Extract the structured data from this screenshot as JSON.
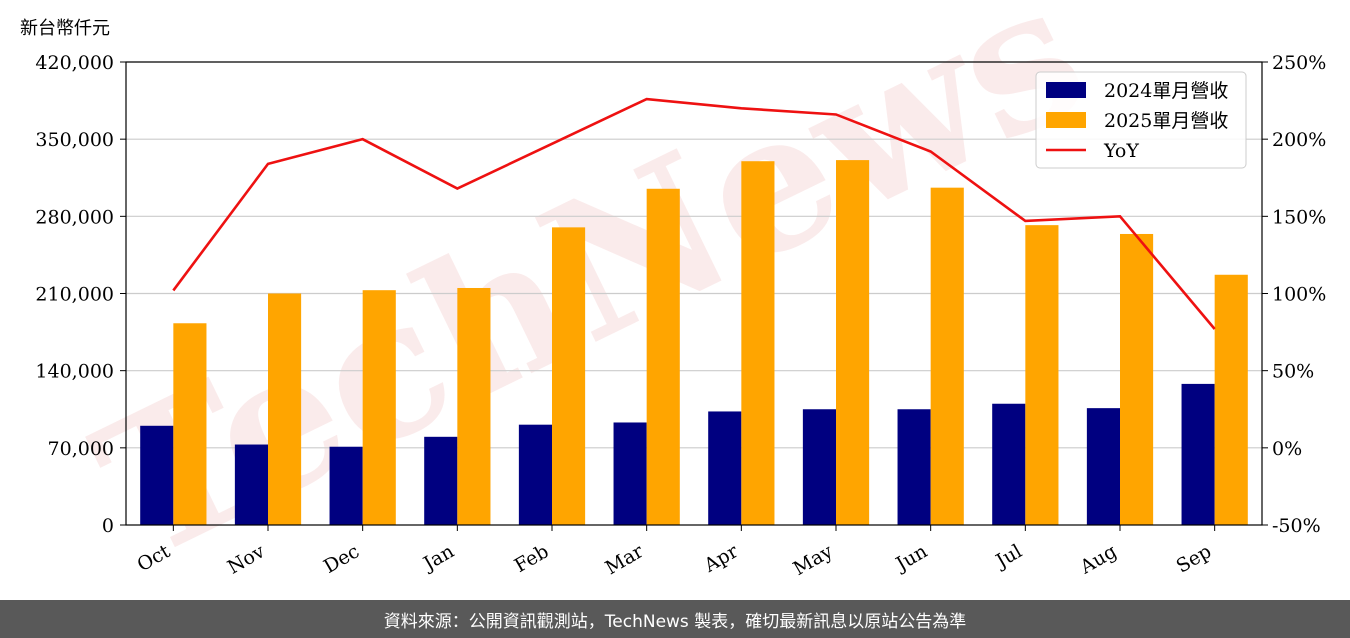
{
  "unit_label": "新台幣仟元",
  "footer_text": "資料來源：公開資訊觀測站，TechNews 製表，確切最新訊息以原站公告為準",
  "watermark_text": "TechNews",
  "colors": {
    "series_2024": "#000080",
    "series_2025": "#FFA500",
    "yoy": "#EE1111",
    "grid": "#cccccc",
    "footer_bg": "#595959"
  },
  "chart_data": {
    "type": "bar",
    "categories": [
      "Oct",
      "Nov",
      "Dec",
      "Jan",
      "Feb",
      "Mar",
      "Apr",
      "May",
      "Jun",
      "Jul",
      "Aug",
      "Sep"
    ],
    "series": [
      {
        "name": "2024單月營收",
        "axis": "left",
        "kind": "bar",
        "values": [
          90000,
          73000,
          71000,
          80000,
          91000,
          93000,
          103000,
          105000,
          105000,
          110000,
          106000,
          128000
        ]
      },
      {
        "name": "2025單月營收",
        "axis": "right-bar",
        "kind": "bar",
        "values": [
          183000,
          210000,
          213000,
          215000,
          270000,
          305000,
          330000,
          331000,
          306000,
          272000,
          264000,
          227000
        ]
      },
      {
        "name": "YoY",
        "axis": "right",
        "kind": "line",
        "values": [
          102,
          184,
          200,
          168,
          197,
          226,
          220,
          216,
          192,
          147,
          150,
          77
        ]
      }
    ],
    "y_left": {
      "min": 0,
      "max": 420000,
      "ticks": [
        0,
        70000,
        140000,
        210000,
        280000,
        350000,
        420000
      ],
      "tick_labels": [
        "0",
        "70,000",
        "140,000",
        "210,000",
        "280,000",
        "350,000",
        "420,000"
      ]
    },
    "y_right": {
      "min": -50,
      "max": 250,
      "ticks": [
        -50,
        0,
        50,
        100,
        150,
        200,
        250
      ],
      "tick_labels": [
        "-50%",
        "0%",
        "50%",
        "100%",
        "150%",
        "200%",
        "250%"
      ]
    },
    "grid": true,
    "legend_position": "top-right"
  }
}
